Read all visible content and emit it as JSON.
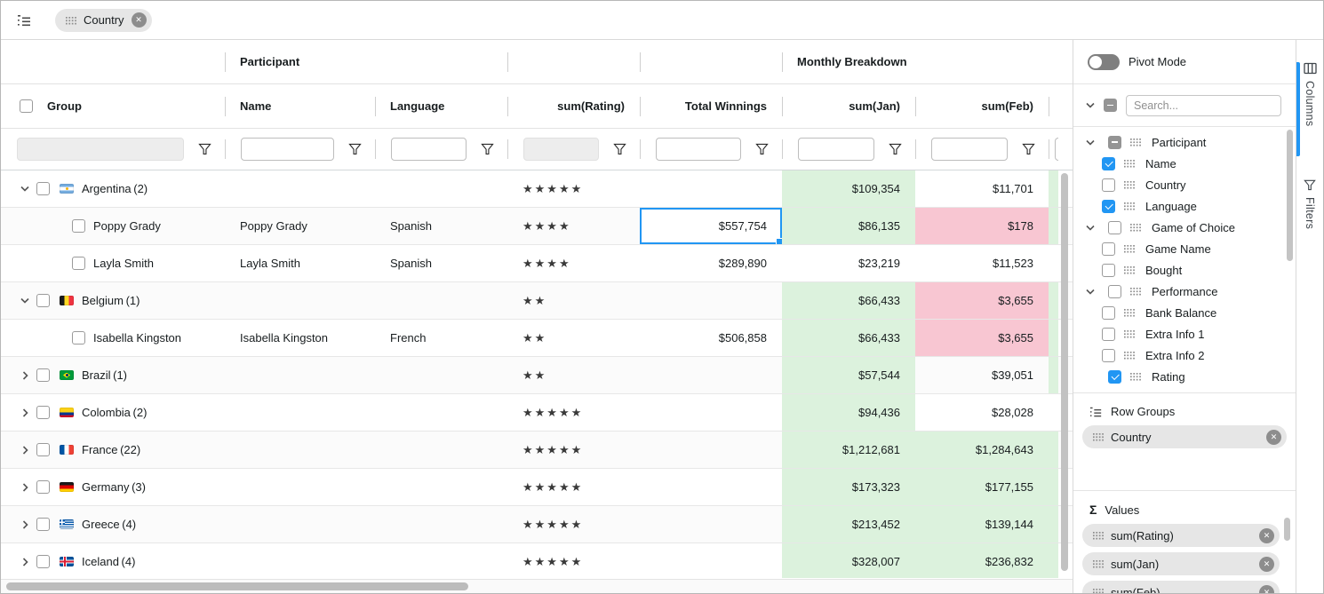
{
  "colors": {
    "accent_blue": "#2196f3",
    "highlight_green": "#dcf2dd",
    "highlight_pink": "#f8c6d2"
  },
  "group_panel": {
    "chips": [
      {
        "label": "Country"
      }
    ]
  },
  "grid": {
    "group_headers": {
      "participant": "Participant",
      "monthly": "Monthly Breakdown"
    },
    "columns": [
      {
        "label": "Group"
      },
      {
        "label": "Name"
      },
      {
        "label": "Language"
      },
      {
        "label": "sum(Rating)"
      },
      {
        "label": "Total Winnings"
      },
      {
        "label": "sum(Jan)"
      },
      {
        "label": "sum(Feb)"
      }
    ],
    "filters": [
      {
        "col": "Group",
        "enabled": false
      },
      {
        "col": "Name",
        "enabled": true
      },
      {
        "col": "Language",
        "enabled": true
      },
      {
        "col": "sum(Rating)",
        "enabled": false
      },
      {
        "col": "Total Winnings",
        "enabled": true
      },
      {
        "col": "sum(Jan)",
        "enabled": true
      },
      {
        "col": "sum(Feb)",
        "enabled": true
      }
    ],
    "rows": [
      {
        "type": "group",
        "expanded": true,
        "flag": "argentina",
        "label": "Argentina",
        "count": "(2)",
        "rating": 5,
        "winnings": "",
        "jan": "$109,354",
        "jan_hl": "green",
        "feb": "$11,701",
        "feb_hl": "none",
        "mar_hl": "green"
      },
      {
        "type": "child",
        "label": "Poppy Grady",
        "name": "Poppy Grady",
        "language": "Spanish",
        "rating": 4,
        "winnings": "$557,754",
        "winnings_selected": true,
        "jan": "$86,135",
        "jan_hl": "green",
        "feb": "$178",
        "feb_hl": "pink",
        "mar_hl": "green"
      },
      {
        "type": "child",
        "label": "Layla Smith",
        "name": "Layla Smith",
        "language": "Spanish",
        "rating": 4,
        "winnings": "$289,890",
        "jan": "$23,219",
        "jan_hl": "none",
        "feb": "$11,523",
        "feb_hl": "none",
        "mar_hl": "none"
      },
      {
        "type": "group",
        "expanded": true,
        "flag": "belgium",
        "label": "Belgium",
        "count": "(1)",
        "rating": 2,
        "winnings": "",
        "jan": "$66,433",
        "jan_hl": "green",
        "feb": "$3,655",
        "feb_hl": "pink",
        "mar_hl": "green"
      },
      {
        "type": "child",
        "label": "Isabella Kingston",
        "name": "Isabella Kingston",
        "language": "French",
        "rating": 2,
        "winnings": "$506,858",
        "jan": "$66,433",
        "jan_hl": "green",
        "feb": "$3,655",
        "feb_hl": "pink",
        "mar_hl": "green"
      },
      {
        "type": "group",
        "expanded": false,
        "flag": "brazil",
        "label": "Brazil",
        "count": "(1)",
        "rating": 2,
        "winnings": "",
        "jan": "$57,544",
        "jan_hl": "green",
        "feb": "$39,051",
        "feb_hl": "none",
        "mar_hl": "green"
      },
      {
        "type": "group",
        "expanded": false,
        "flag": "colombia",
        "label": "Colombia",
        "count": "(2)",
        "rating": 5,
        "winnings": "",
        "jan": "$94,436",
        "jan_hl": "green",
        "feb": "$28,028",
        "feb_hl": "none",
        "mar_hl": "none"
      },
      {
        "type": "group",
        "expanded": false,
        "flag": "france",
        "label": "France",
        "count": "(22)",
        "rating": 5,
        "winnings": "",
        "jan": "$1,212,681",
        "jan_hl": "green",
        "feb": "$1,284,643",
        "feb_hl": "green",
        "mar_hl": "green"
      },
      {
        "type": "group",
        "expanded": false,
        "flag": "germany",
        "label": "Germany",
        "count": "(3)",
        "rating": 5,
        "winnings": "",
        "jan": "$173,323",
        "jan_hl": "green",
        "feb": "$177,155",
        "feb_hl": "green",
        "mar_hl": "green"
      },
      {
        "type": "group",
        "expanded": false,
        "flag": "greece",
        "label": "Greece",
        "count": "(4)",
        "rating": 5,
        "winnings": "",
        "jan": "$213,452",
        "jan_hl": "green",
        "feb": "$139,144",
        "feb_hl": "green",
        "mar_hl": "green"
      },
      {
        "type": "group",
        "expanded": false,
        "flag": "iceland",
        "label": "Iceland",
        "count": "(4)",
        "rating": 5,
        "winnings": "",
        "jan": "$328,007",
        "jan_hl": "green",
        "feb": "$236,832",
        "feb_hl": "green",
        "mar_hl": "green"
      }
    ]
  },
  "sidebar": {
    "pivot_mode_label": "Pivot Mode",
    "search_placeholder": "Search...",
    "columns_tree": [
      {
        "label": "Participant",
        "level": 0,
        "group": true,
        "expanded": true,
        "checkbox": "indet"
      },
      {
        "label": "Name",
        "level": 1,
        "checkbox": "checked"
      },
      {
        "label": "Country",
        "level": 1,
        "checkbox": "unchecked"
      },
      {
        "label": "Language",
        "level": 1,
        "checkbox": "checked"
      },
      {
        "label": "Game of Choice",
        "level": 0,
        "group": true,
        "expanded": true,
        "checkbox": "unchecked"
      },
      {
        "label": "Game Name",
        "level": 1,
        "checkbox": "unchecked"
      },
      {
        "label": "Bought",
        "level": 1,
        "checkbox": "unchecked"
      },
      {
        "label": "Performance",
        "level": 0,
        "group": true,
        "expanded": true,
        "checkbox": "unchecked"
      },
      {
        "label": "Bank Balance",
        "level": 1,
        "checkbox": "unchecked"
      },
      {
        "label": "Extra Info 1",
        "level": 1,
        "checkbox": "unchecked"
      },
      {
        "label": "Extra Info 2",
        "level": 1,
        "checkbox": "unchecked"
      },
      {
        "label": "Rating",
        "level": 0,
        "group": false,
        "checkbox": "checked"
      }
    ],
    "row_groups": {
      "title": "Row Groups",
      "chips": [
        {
          "label": "Country"
        }
      ]
    },
    "values": {
      "title": "Values",
      "chips": [
        {
          "label": "sum(Rating)"
        },
        {
          "label": "sum(Jan)"
        },
        {
          "label": "sum(Feb)"
        }
      ]
    }
  },
  "tabstrip": {
    "tabs": [
      {
        "label": "Columns",
        "active": true
      },
      {
        "label": "Filters",
        "active": false
      }
    ]
  }
}
